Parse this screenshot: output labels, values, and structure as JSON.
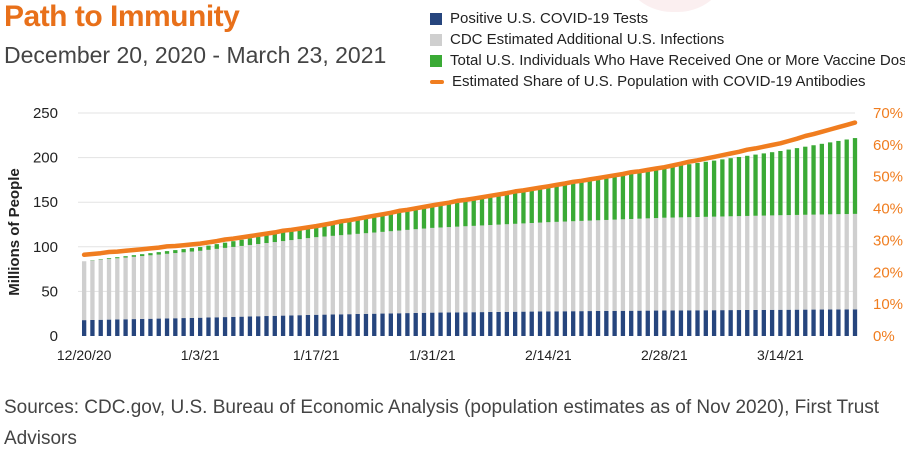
{
  "title": "Path to Immunity",
  "subtitle": "December 20, 2020 - March 23, 2021",
  "legend": [
    {
      "label": "Positive U.S. COVID-19 Tests",
      "color": "#26457d",
      "kind": "box"
    },
    {
      "label": "CDC Estimated Additional U.S. Infections",
      "color": "#cfcfcf",
      "kind": "box"
    },
    {
      "label": "Total U.S. Individuals Who Have Received One or More Vaccine Doses",
      "color": "#3aaa35",
      "kind": "box"
    },
    {
      "label": "Estimated Share of U.S. Population with COVID-19 Antibodies",
      "color": "#f07d1f",
      "kind": "line"
    }
  ],
  "sources": "Sources: CDC.gov, U.S. Bureau of Economic Analysis (population estimates as of Nov 2020), First Trust Advisors",
  "chart_data": {
    "type": "bar",
    "stacked": true,
    "x_range": [
      "12/20/20",
      "3/23/21"
    ],
    "xticks": [
      "12/20/20",
      "1/3/21",
      "1/17/21",
      "1/31/21",
      "2/14/21",
      "2/28/21",
      "3/14/21"
    ],
    "ylabel": "Millions of People",
    "ylim": [
      0,
      250
    ],
    "yticks": [
      0,
      50,
      100,
      150,
      200,
      250
    ],
    "y2lim": [
      0,
      0.7
    ],
    "y2ticks": [
      "0%",
      "10%",
      "20%",
      "30%",
      "40%",
      "50%",
      "60%",
      "70%"
    ],
    "grid": "horizontal",
    "keypoints": [
      {
        "date": "12/20/20",
        "tests": 17.8,
        "infections": 66,
        "vaccinated": 0.0,
        "antibody_share": 0.255
      },
      {
        "date": "1/3/21",
        "tests": 20.5,
        "infections": 75,
        "vaccinated": 4.2,
        "antibody_share": 0.29
      },
      {
        "date": "1/17/21",
        "tests": 23.8,
        "infections": 87,
        "vaccinated": 12,
        "antibody_share": 0.345
      },
      {
        "date": "1/31/21",
        "tests": 26.2,
        "infections": 95,
        "vaccinated": 26,
        "antibody_share": 0.41
      },
      {
        "date": "2/14/21",
        "tests": 27.6,
        "infections": 100,
        "vaccinated": 40,
        "antibody_share": 0.47
      },
      {
        "date": "2/28/21",
        "tests": 28.6,
        "infections": 104,
        "vaccinated": 56,
        "antibody_share": 0.53
      },
      {
        "date": "3/14/21",
        "tests": 29.4,
        "infections": 106,
        "vaccinated": 72,
        "antibody_share": 0.605
      },
      {
        "date": "3/23/21",
        "tests": 29.9,
        "infections": 107,
        "vaccinated": 85,
        "antibody_share": 0.67
      }
    ]
  }
}
